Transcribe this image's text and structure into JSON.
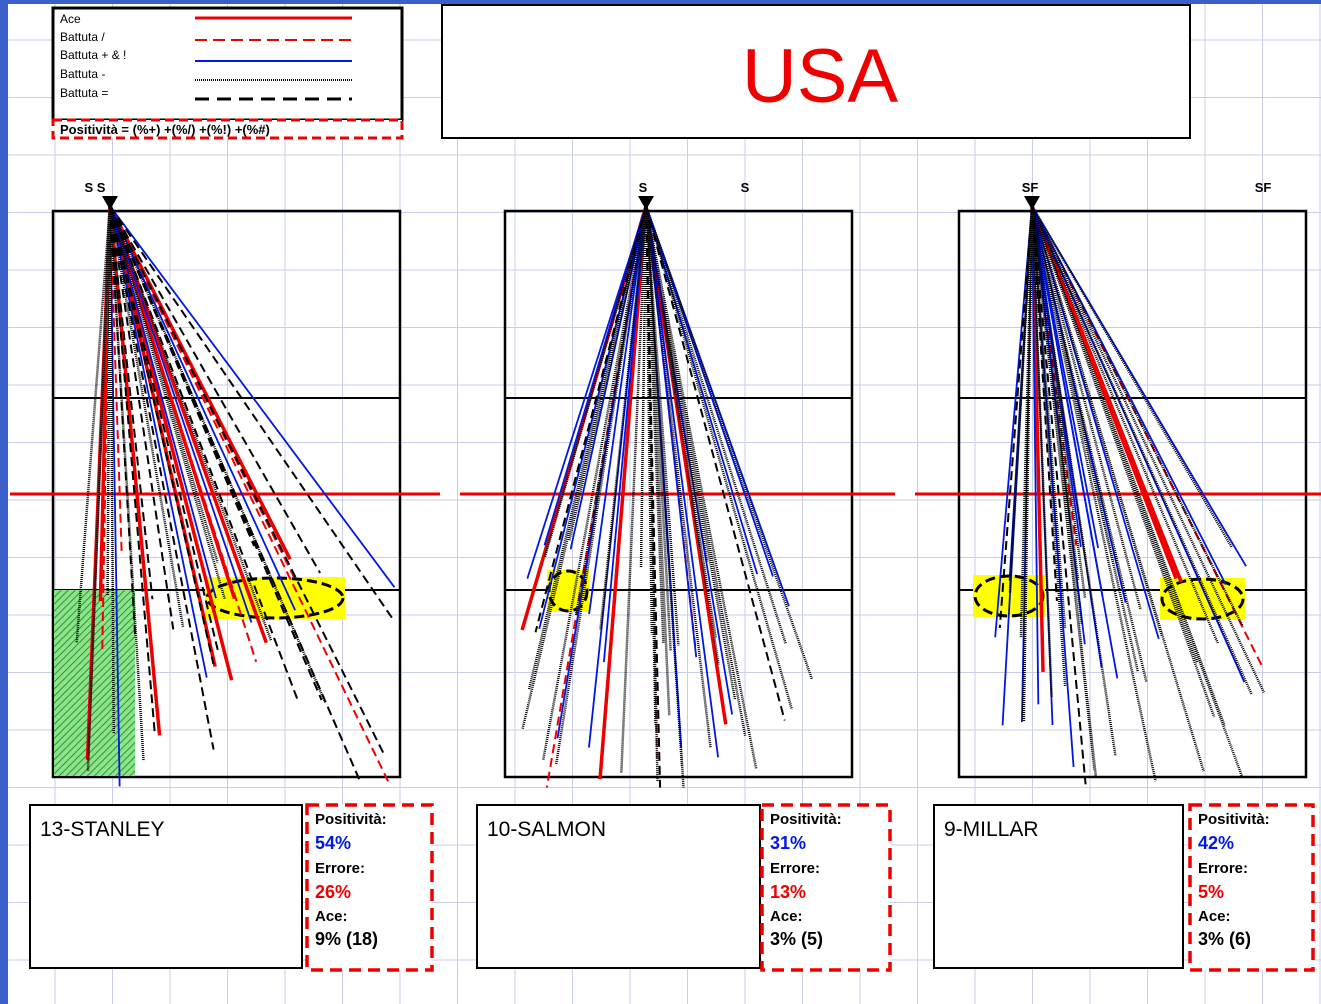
{
  "legend": {
    "items": [
      "Ace",
      "Battuta  /",
      "Battuta + & !",
      "Battuta -",
      "Battuta ="
    ],
    "formula": "Positività = (%+) +(%/) +(%!) +(%#)"
  },
  "title": "USA",
  "courts": [
    {
      "labels": [
        "S S"
      ],
      "player": "13-STANLEY",
      "positivity_label": "Positività:",
      "positivity": "54%",
      "error_label": "Errore:",
      "error": "26%",
      "ace_label": "Ace:",
      "ace": "9% (18)"
    },
    {
      "labels": [
        "S",
        "S"
      ],
      "player": "10-SALMON",
      "positivity_label": "Positività:",
      "positivity": "31%",
      "error_label": "Errore:",
      "error": "13%",
      "ace_label": "Ace:",
      "ace": "3% (5)"
    },
    {
      "labels": [
        "SF",
        "SF"
      ],
      "player": "9-MILLAR",
      "positivity_label": "Positività:",
      "positivity": "42%",
      "error_label": "Errore:",
      "error": "5%",
      "ace_label": "Ace:",
      "ace": "3% (6)"
    }
  ]
}
